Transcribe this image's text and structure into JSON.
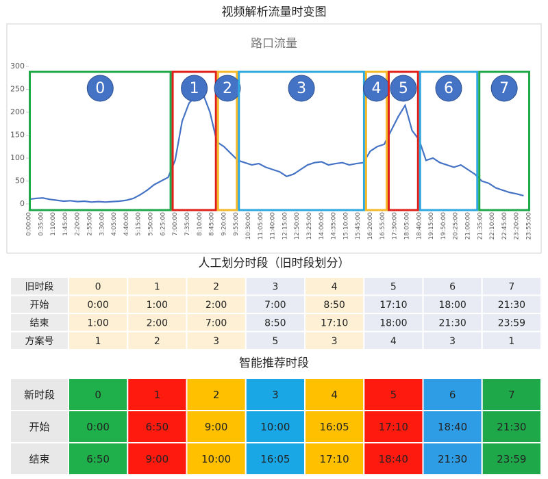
{
  "title": "视频解析流量时变图",
  "chart_data": {
    "type": "line",
    "title": "路口流量",
    "x": [
      0,
      20,
      40,
      60,
      80,
      100,
      120,
      140,
      160,
      180,
      200,
      220,
      240,
      260,
      280,
      300,
      320,
      340,
      360,
      380,
      400,
      420,
      440,
      460,
      480,
      500,
      520,
      540,
      560,
      580,
      600,
      620,
      640,
      660,
      680,
      700,
      720,
      740,
      760,
      780,
      800,
      820,
      840,
      860,
      880,
      900,
      920,
      940,
      960,
      980,
      1000,
      1020,
      1040,
      1060,
      1080,
      1100,
      1120,
      1140,
      1160,
      1180,
      1200,
      1220,
      1240,
      1260,
      1280,
      1300,
      1320,
      1340,
      1360,
      1380,
      1400,
      1420
    ],
    "series": [
      {
        "color": "#4472c4",
        "values": [
          10,
          12,
          13,
          10,
          8,
          6,
          7,
          5,
          6,
          4,
          5,
          4,
          5,
          6,
          8,
          12,
          20,
          30,
          42,
          50,
          58,
          95,
          180,
          220,
          235,
          240,
          200,
          135,
          125,
          110,
          95,
          90,
          85,
          88,
          80,
          75,
          70,
          60,
          65,
          75,
          85,
          90,
          92,
          85,
          88,
          90,
          85,
          88,
          90,
          115,
          125,
          130,
          160,
          190,
          215,
          160,
          140,
          95,
          100,
          90,
          85,
          80,
          85,
          75,
          65,
          50,
          45,
          35,
          30,
          25,
          22,
          18
        ]
      }
    ],
    "xlim": [
      0,
      1435
    ],
    "xticks": [
      {
        "value": 0,
        "label": "0:00:00"
      },
      {
        "value": 35,
        "label": "0:35:00"
      },
      {
        "value": 70,
        "label": "1:10:00"
      },
      {
        "value": 105,
        "label": "1:45:00"
      },
      {
        "value": 140,
        "label": "2:20:00"
      },
      {
        "value": 175,
        "label": "2:55:00"
      },
      {
        "value": 210,
        "label": "3:30:00"
      },
      {
        "value": 245,
        "label": "4:05:00"
      },
      {
        "value": 280,
        "label": "4:40:00"
      },
      {
        "value": 315,
        "label": "5:15:00"
      },
      {
        "value": 350,
        "label": "5:50:00"
      },
      {
        "value": 385,
        "label": "6:25:00"
      },
      {
        "value": 420,
        "label": "7:00:00"
      },
      {
        "value": 455,
        "label": "7:35:00"
      },
      {
        "value": 490,
        "label": "8:10:00"
      },
      {
        "value": 525,
        "label": "8:45:00"
      },
      {
        "value": 560,
        "label": "9:20:00"
      },
      {
        "value": 595,
        "label": "9:55:00"
      },
      {
        "value": 630,
        "label": "10:30:00"
      },
      {
        "value": 665,
        "label": "11:05:00"
      },
      {
        "value": 700,
        "label": "11:40:00"
      },
      {
        "value": 735,
        "label": "12:15:00"
      },
      {
        "value": 770,
        "label": "12:50:00"
      },
      {
        "value": 805,
        "label": "13:25:00"
      },
      {
        "value": 840,
        "label": "14:00:00"
      },
      {
        "value": 875,
        "label": "14:35:00"
      },
      {
        "value": 910,
        "label": "15:10:00"
      },
      {
        "value": 945,
        "label": "15:45:00"
      },
      {
        "value": 980,
        "label": "16:20:00"
      },
      {
        "value": 1015,
        "label": "16:55:00"
      },
      {
        "value": 1050,
        "label": "17:30:00"
      },
      {
        "value": 1085,
        "label": "18:05:00"
      },
      {
        "value": 1120,
        "label": "18:40:00"
      },
      {
        "value": 1155,
        "label": "19:15:00"
      },
      {
        "value": 1190,
        "label": "19:50:00"
      },
      {
        "value": 1225,
        "label": "20:25:00"
      },
      {
        "value": 1260,
        "label": "21:00:00"
      },
      {
        "value": 1295,
        "label": "21:35:00"
      },
      {
        "value": 1330,
        "label": "22:10:00"
      },
      {
        "value": 1365,
        "label": "22:45:00"
      },
      {
        "value": 1400,
        "label": "23:20:00"
      },
      {
        "value": 1435,
        "label": "23:55:00"
      }
    ],
    "ylim": [
      0,
      300
    ],
    "yticks": [
      0,
      50,
      100,
      150,
      200,
      250,
      300
    ],
    "regions": [
      {
        "label": "0",
        "start": 0,
        "end": 410,
        "color": "#1fa84a"
      },
      {
        "label": "1",
        "start": 410,
        "end": 540,
        "color": "#e0201b"
      },
      {
        "label": "2",
        "start": 540,
        "end": 600,
        "color": "#f5b82a"
      },
      {
        "label": "3",
        "start": 600,
        "end": 965,
        "color": "#2fa8e0"
      },
      {
        "label": "4",
        "start": 965,
        "end": 1030,
        "color": "#f5b82a"
      },
      {
        "label": "5",
        "start": 1030,
        "end": 1120,
        "color": "#e0201b"
      },
      {
        "label": "6",
        "start": 1120,
        "end": 1290,
        "color": "#2fa8e0"
      },
      {
        "label": "7",
        "start": 1290,
        "end": 1439,
        "color": "#1fa84a"
      }
    ]
  },
  "old_table": {
    "title": "人工划分时段（旧时段划分）",
    "column_colors": [
      "#ececec",
      "#fdf0d4",
      "#fdf0d4",
      "#fdf0d4",
      "#e8ebf3",
      "#fdf0d4",
      "#e8ebf3",
      "#e8ebf3",
      "#e8ebf3"
    ],
    "rows": [
      [
        "旧时段",
        "0",
        "1",
        "2",
        "3",
        "4",
        "5",
        "6",
        "7"
      ],
      [
        "开始",
        "0:00",
        "1:00",
        "2:00",
        "7:00",
        "8:50",
        "17:10",
        "18:00",
        "21:30"
      ],
      [
        "结束",
        "1:00",
        "2:00",
        "7:00",
        "8:50",
        "17:10",
        "18:00",
        "21:30",
        "23:59"
      ],
      [
        "方案号",
        "1",
        "2",
        "3",
        "5",
        "3",
        "4",
        "3",
        "1"
      ]
    ]
  },
  "new_table": {
    "title": "智能推荐时段",
    "column_colors": [
      "#e8e8e8",
      "#1fb04b",
      "#ff1a10",
      "#ffc000",
      "#1aa7e6",
      "#ffc000",
      "#ff1a10",
      "#2e9de6",
      "#1fa84a"
    ],
    "rows": [
      [
        "新时段",
        "0",
        "1",
        "2",
        "3",
        "4",
        "5",
        "6",
        "7"
      ],
      [
        "开始",
        "0:00",
        "6:50",
        "9:00",
        "10:00",
        "16:05",
        "17:10",
        "18:40",
        "21:30"
      ],
      [
        "结束",
        "6:50",
        "9:00",
        "10:00",
        "16:05",
        "17:10",
        "18:40",
        "21:30",
        "23:59"
      ]
    ]
  }
}
